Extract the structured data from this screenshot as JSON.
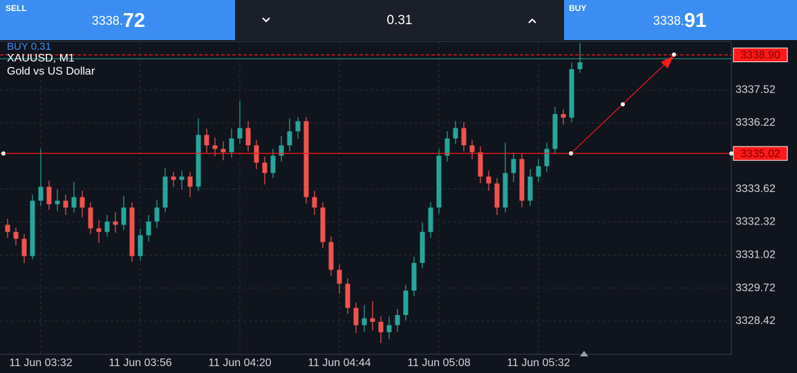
{
  "header": {
    "sell": {
      "label": "SELL",
      "price_main": "3338.",
      "price_frac": "72"
    },
    "volume": "0.31",
    "buy": {
      "label": "BUY",
      "price_main": "3338.",
      "price_frac": "91"
    }
  },
  "chart_data": {
    "type": "candlestick",
    "order_label": "BUY 0.31",
    "symbol": "XAUUSD, M1",
    "description": "Gold vs US Dollar",
    "up_color": "#26a69a",
    "down_color": "#ef5350",
    "grid": true,
    "categories": [
      null,
      null,
      null,
      null,
      "11 Jun 03:32",
      null,
      null,
      null,
      null,
      null,
      null,
      null,
      null,
      null,
      null,
      null,
      "11 Jun 03:56",
      null,
      null,
      null,
      null,
      null,
      null,
      null,
      null,
      null,
      null,
      null,
      "11 Jun 04:20",
      null,
      null,
      null,
      null,
      null,
      null,
      null,
      null,
      null,
      null,
      null,
      "11 Jun 04:44",
      null,
      null,
      null,
      null,
      null,
      null,
      null,
      null,
      null,
      null,
      null,
      "11 Jun 05:08",
      null,
      null,
      null,
      null,
      null,
      null,
      null,
      null,
      null,
      null,
      null,
      "11 Jun 05:32",
      null,
      null,
      null,
      null,
      null
    ],
    "open": [
      3332.21,
      3331.93,
      3331.66,
      3330.98,
      3333.16,
      3333.71,
      3333.02,
      3333.16,
      3332.89,
      3333.3,
      3332.89,
      3332.07,
      3331.93,
      3332.34,
      3332.21,
      3332.89,
      3330.98,
      3331.8,
      3332.34,
      3332.89,
      3334.11,
      3333.98,
      3334.11,
      3333.71,
      3335.75,
      3335.34,
      3335.2,
      3335.07,
      3335.61,
      3336.02,
      3335.34,
      3334.66,
      3334.25,
      3334.93,
      3335.34,
      3335.89,
      3336.29,
      3333.3,
      3332.89,
      3331.53,
      3330.44,
      3329.89,
      3328.94,
      3328.26,
      3328.53,
      3328.39,
      3327.98,
      3328.26,
      3328.66,
      3329.62,
      3330.71,
      3331.93,
      3332.89,
      3334.93,
      3335.61,
      3336.02,
      3335.34,
      3335.07,
      3334.11,
      3333.84,
      3332.89,
      3334.25,
      3334.8,
      3333.16,
      3334.11,
      3334.52,
      3335.2,
      3336.57,
      3336.43,
      3338.34
    ],
    "high": [
      3332.45,
      3332.1,
      3331.85,
      3333.4,
      3335.2,
      3333.95,
      3333.6,
      3333.4,
      3333.9,
      3333.55,
      3333.1,
      3332.4,
      3332.6,
      3332.7,
      3333.35,
      3333.1,
      3332.05,
      3332.6,
      3333.2,
      3334.45,
      3334.3,
      3334.35,
      3334.3,
      3336.4,
      3336.0,
      3335.65,
      3335.5,
      3336.0,
      3337.1,
      3336.3,
      3335.55,
      3334.9,
      3335.2,
      3335.7,
      3336.4,
      3336.45,
      3336.45,
      3333.55,
      3333.1,
      3331.75,
      3330.65,
      3330.1,
      3329.15,
      3329.05,
      3329.2,
      3328.6,
      3328.6,
      3328.9,
      3329.85,
      3330.95,
      3332.3,
      3333.1,
      3335.2,
      3335.9,
      3336.3,
      3336.25,
      3335.55,
      3335.3,
      3334.35,
      3334.05,
      3335.45,
      3335.05,
      3335.0,
      3334.4,
      3334.8,
      3335.45,
      3336.85,
      3336.75,
      3338.6,
      3339.37
    ],
    "low": [
      3331.7,
      3331.4,
      3330.7,
      3330.85,
      3332.95,
      3332.8,
      3332.75,
      3332.6,
      3332.7,
      3332.5,
      3331.85,
      3331.5,
      3331.75,
      3331.9,
      3332.0,
      3330.75,
      3330.8,
      3331.55,
      3332.1,
      3332.7,
      3333.7,
      3333.6,
      3333.3,
      3333.55,
      3335.05,
      3334.9,
      3334.75,
      3334.85,
      3335.4,
      3335.1,
      3334.4,
      3333.8,
      3334.05,
      3334.7,
      3335.1,
      3335.6,
      3333.05,
      3332.6,
      3331.3,
      3330.2,
      3329.5,
      3328.7,
      3327.95,
      3328.0,
      3328.05,
      3327.55,
      3327.7,
      3328.0,
      3328.45,
      3329.4,
      3330.5,
      3331.7,
      3332.65,
      3334.7,
      3335.4,
      3335.1,
      3334.8,
      3333.85,
      3333.55,
      3332.6,
      3332.7,
      3333.9,
      3332.9,
      3332.95,
      3333.9,
      3334.3,
      3335.0,
      3336.15,
      3336.25,
      3338.2
    ],
    "close": [
      3331.93,
      3331.66,
      3330.98,
      3333.16,
      3333.71,
      3333.02,
      3333.16,
      3332.89,
      3333.3,
      3332.89,
      3332.07,
      3331.93,
      3332.34,
      3332.21,
      3332.89,
      3330.98,
      3331.8,
      3332.34,
      3332.89,
      3334.11,
      3333.98,
      3334.11,
      3333.71,
      3335.75,
      3335.34,
      3335.2,
      3335.07,
      3335.61,
      3336.02,
      3335.34,
      3334.66,
      3334.25,
      3334.93,
      3335.34,
      3335.89,
      3336.29,
      3333.3,
      3332.89,
      3331.53,
      3330.44,
      3329.89,
      3328.94,
      3328.26,
      3328.53,
      3328.39,
      3327.98,
      3328.26,
      3328.66,
      3329.62,
      3330.71,
      3331.93,
      3332.89,
      3334.93,
      3335.61,
      3336.02,
      3335.34,
      3335.07,
      3334.11,
      3333.84,
      3332.89,
      3334.25,
      3334.8,
      3333.16,
      3334.11,
      3334.52,
      3335.2,
      3336.57,
      3336.43,
      3338.34,
      3338.61
    ],
    "ylim": [
      3327.11,
      3339.43
    ],
    "yticks": [
      3328.42,
      3329.72,
      3331.02,
      3332.32,
      3333.62,
      3336.22,
      3337.52
    ],
    "price_lines": [
      {
        "value": 3338.9,
        "label": "3338.90",
        "dashed": true,
        "color": "#ff1a1a"
      },
      {
        "value": 3335.02,
        "dashed": false,
        "color": "#ff1a1a"
      }
    ]
  }
}
